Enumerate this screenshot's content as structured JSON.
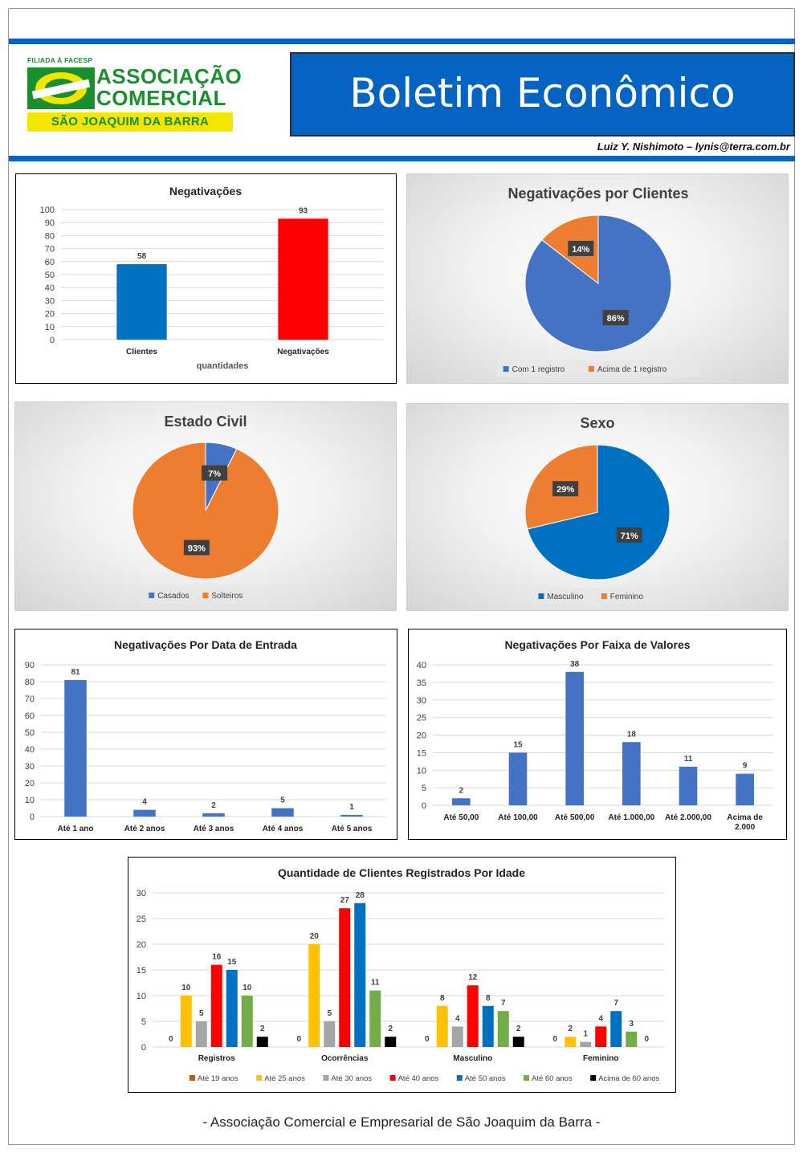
{
  "header": {
    "logo": {
      "affiliation": "FILIADA À FACESP",
      "line1": "ASSOCIAÇÃO",
      "line2": "COMERCIAL",
      "city": "SÃO JOAQUIM DA BARRA"
    },
    "title": "Boletim Econômico",
    "author": "Luiz Y. Nishimoto – lynis@terra.com.br"
  },
  "footer": "- Associação Comercial e Empresarial de São Joaquim da Barra -",
  "chart_data": [
    {
      "id": "negativacoes",
      "type": "bar",
      "title": "Negativações",
      "xlabel": "quantidades",
      "ylabel": "",
      "categories": [
        "Clientes",
        "Negativações"
      ],
      "values": [
        58,
        93
      ],
      "colors": [
        "#0070c0",
        "#ff0000"
      ],
      "ylim": [
        0,
        100
      ],
      "yticks": [
        0,
        10,
        20,
        30,
        40,
        50,
        60,
        70,
        80,
        90,
        100
      ],
      "grid": true,
      "legend": "none"
    },
    {
      "id": "negativacoes-por-clientes",
      "type": "pie",
      "title": "Negativações por Clientes",
      "labels": [
        "Com 1 registro",
        "Acima de 1 registro"
      ],
      "values": [
        86,
        14
      ],
      "value_labels": [
        "86%",
        "14%"
      ],
      "colors": [
        "#4472c4",
        "#ed7d31"
      ],
      "legend": "bottom"
    },
    {
      "id": "estado-civil",
      "type": "pie",
      "title": "Estado Civil",
      "labels": [
        "Casados",
        "Solteiros"
      ],
      "values": [
        7,
        93
      ],
      "value_labels": [
        "7%",
        "93%"
      ],
      "colors": [
        "#4472c4",
        "#ed7d31"
      ],
      "legend": "bottom"
    },
    {
      "id": "sexo",
      "type": "pie",
      "title": "Sexo",
      "labels": [
        "Masculino",
        "Feminino"
      ],
      "values": [
        71,
        29
      ],
      "value_labels": [
        "71%",
        "29%"
      ],
      "colors": [
        "#0070c0",
        "#ed7d31"
      ],
      "legend": "bottom"
    },
    {
      "id": "data-de-entrada",
      "type": "bar",
      "title": "Negativações Por Data de Entrada",
      "categories": [
        "Até 1 ano",
        "Até 2 anos",
        "Até 3 anos",
        "Até 4 anos",
        "Até 5 anos"
      ],
      "values": [
        81,
        4,
        2,
        5,
        1
      ],
      "colors": [
        "#4472c4"
      ],
      "ylim": [
        0,
        90
      ],
      "yticks": [
        0,
        10,
        20,
        30,
        40,
        50,
        60,
        70,
        80,
        90
      ],
      "grid": true,
      "legend": "none"
    },
    {
      "id": "faixa-de-valores",
      "type": "bar",
      "title": "Negativações Por Faixa de Valores",
      "categories": [
        "Até 50,00",
        "Até 100,00",
        "Até 500,00",
        "Até 1.000,00",
        "Até 2.000,00",
        "Acima de 2.000"
      ],
      "category_lines": [
        [
          "Até 50,00"
        ],
        [
          "Até 100,00"
        ],
        [
          "Até 500,00"
        ],
        [
          "Até 1.000,00"
        ],
        [
          "Até 2.000,00"
        ],
        [
          "Acima de",
          "2.000"
        ]
      ],
      "values": [
        2,
        15,
        38,
        18,
        11,
        9
      ],
      "colors": [
        "#4472c4"
      ],
      "ylim": [
        0,
        40
      ],
      "yticks": [
        0,
        5,
        10,
        15,
        20,
        25,
        30,
        35,
        40
      ],
      "grid": true,
      "legend": "none"
    },
    {
      "id": "clientes-por-idade",
      "type": "bar",
      "title": "Quantidade de Clientes Registrados Por Idade",
      "categories": [
        "Registros",
        "Ocorrências",
        "Masculino",
        "Feminino"
      ],
      "series": [
        {
          "name": "Até 19 anos",
          "values": [
            0,
            0,
            0,
            0
          ],
          "color": "#c55a11"
        },
        {
          "name": "Até 25 anos",
          "values": [
            10,
            20,
            8,
            2
          ],
          "color": "#ffc000"
        },
        {
          "name": "Até 30 anos",
          "values": [
            5,
            5,
            4,
            1
          ],
          "color": "#a5a5a5"
        },
        {
          "name": "Até 40 anos",
          "values": [
            16,
            27,
            12,
            4
          ],
          "color": "#ff0000"
        },
        {
          "name": "Até 50 anos",
          "values": [
            15,
            28,
            8,
            7
          ],
          "color": "#0070c0"
        },
        {
          "name": "Até 60 anos",
          "values": [
            10,
            11,
            7,
            3
          ],
          "color": "#70ad47"
        },
        {
          "name": "Acima de 60 anos",
          "values": [
            2,
            2,
            2,
            0
          ],
          "color": "#000000"
        }
      ],
      "ylim": [
        0,
        30
      ],
      "yticks": [
        0,
        5,
        10,
        15,
        20,
        25,
        30
      ],
      "grid": true,
      "legend": "bottom"
    }
  ]
}
